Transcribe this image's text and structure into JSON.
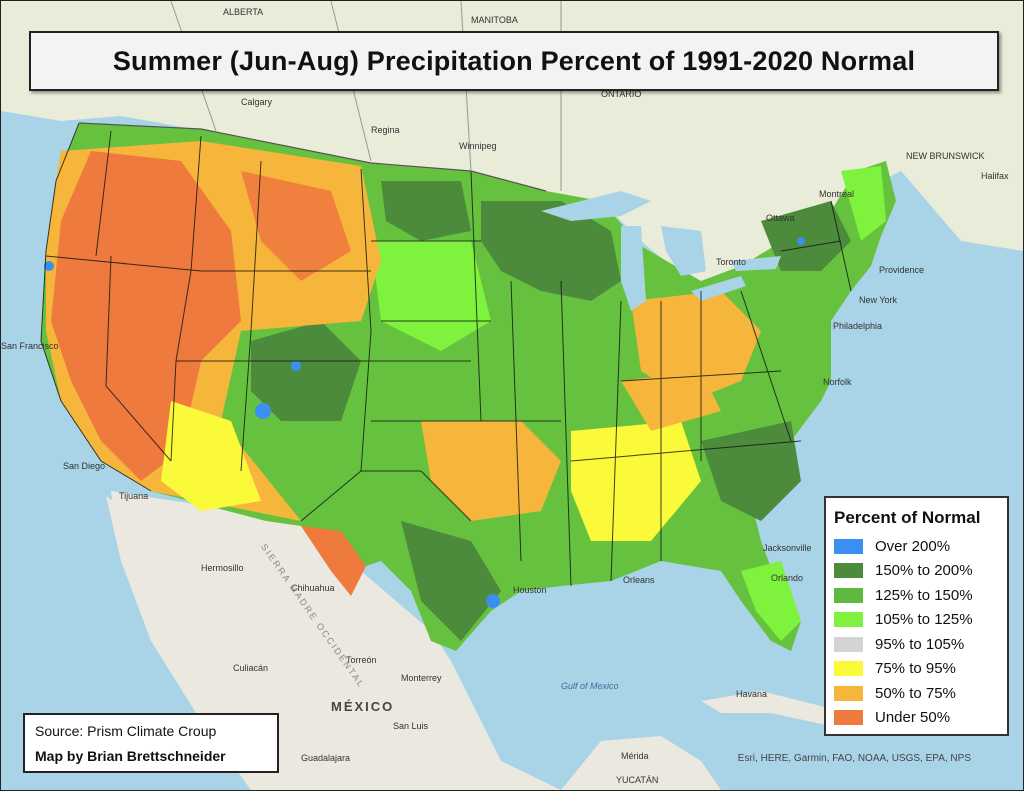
{
  "title": "Summer (Jun-Aug) Precipitation Percent of 1991-2020 Normal",
  "legend": {
    "title": "Percent of Normal",
    "items": [
      {
        "label": "Over 200%",
        "color": "#3b8ff2"
      },
      {
        "label": "150% to 200%",
        "color": "#4c8a3c"
      },
      {
        "label": "125% to 150%",
        "color": "#5fb840"
      },
      {
        "label": "105% to 125%",
        "color": "#7ef23c"
      },
      {
        "label": "95% to 105%",
        "color": "#d4d4d4"
      },
      {
        "label": "75% to 95%",
        "color": "#fafa3a"
      },
      {
        "label": "50% to 75%",
        "color": "#f6b63c"
      },
      {
        "label": "Under 50%",
        "color": "#ee7a3e"
      }
    ]
  },
  "source": {
    "line1": "Source: Prism Climate Croup",
    "line2": "Map by Brian Brettschneider"
  },
  "attribution": "Esri, HERE, Garmin, FAO, NOAA, USGS, EPA, NPS",
  "place_labels": {
    "alberta": "ALBERTA",
    "manitoba": "MANITOBA",
    "ontario": "ONTARIO",
    "calgary": "Calgary",
    "regina": "Regina",
    "winnipeg": "Winnipeg",
    "montreal": "Montreal",
    "ottawa": "Ottawa",
    "toronto": "Toronto",
    "halifax": "Halifax",
    "new_brunswick": "NEW BRUNSWICK",
    "san_francisco": "San Francisco",
    "san_diego": "San Diego",
    "tijuana": "Tijuana",
    "hermosillo": "Hermosillo",
    "chihuahua": "Chihuahua",
    "culiacan": "Culiacán",
    "torreon": "Torreón",
    "monterrey": "Monterrey",
    "mexico": "MÉXICO",
    "san_luis": "San Luis",
    "guadalajara": "Guadalajara",
    "gulf_of_mexico": "Gulf of Mexico",
    "havana": "Havana",
    "merida": "Mérida",
    "yucatan": "YUCATÁN",
    "jacksonville": "Jacksonville",
    "orlando": "Orlando",
    "orleans": "Orleans",
    "houston": "Houston",
    "norfolk": "Norfolk",
    "philadelphia": "Philadelphia",
    "new_york": "New York",
    "providence": "Providence",
    "sierra_madre": "SIERRA MADRE OCCIDENTAL"
  }
}
